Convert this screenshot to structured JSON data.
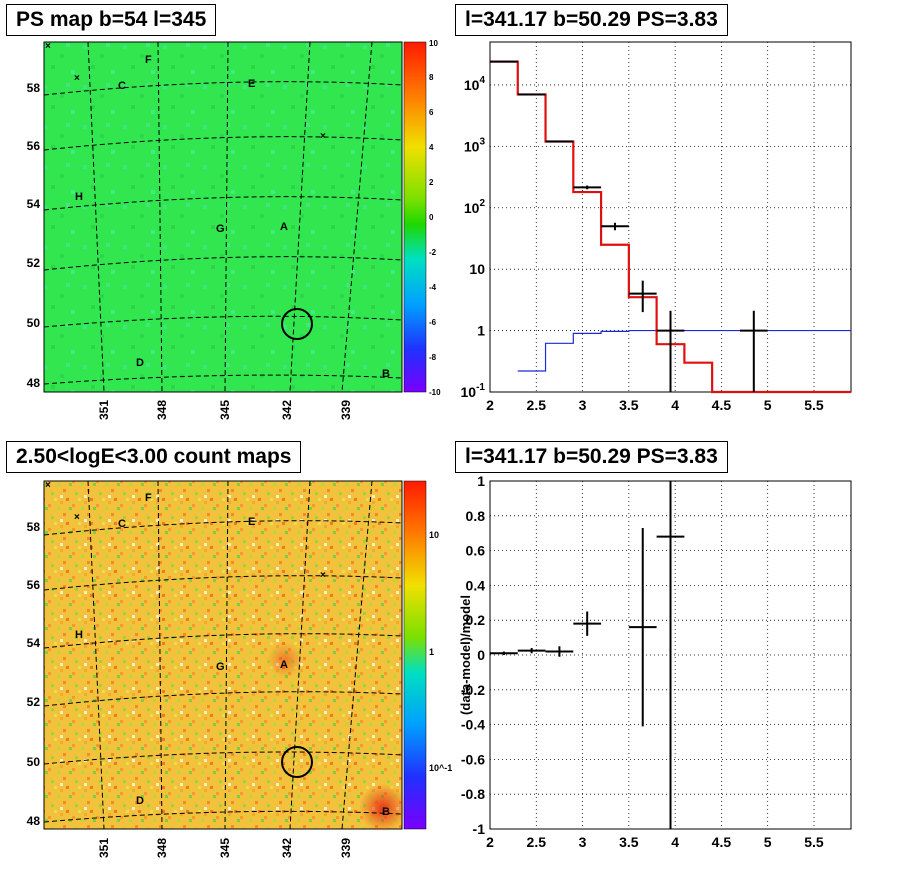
{
  "titles": {
    "ps_map": "PS map b=54 l=345",
    "spectrum": "l=341.17 b=50.29 PS=3.83",
    "count_map": "2.50<logE<3.00 count maps",
    "residual": "l=341.17 b=50.29 PS=3.83"
  },
  "chart_data": [
    {
      "type": "heatmap",
      "name": "PS map",
      "x_ticks": [
        "351",
        "348",
        "345",
        "342",
        "339"
      ],
      "y_ticks": [
        "58",
        "56",
        "54",
        "52",
        "50",
        "48"
      ],
      "colorbar_ticks": [
        "10",
        "8",
        "6",
        "4",
        "2",
        "0",
        "-2",
        "-4",
        "-6",
        "-8",
        "-10"
      ],
      "colorbar_range": [
        -10,
        10
      ],
      "source_labels": [
        "F",
        "C",
        "E",
        "H",
        "G",
        "A",
        "D",
        "B"
      ],
      "circle_center": {
        "l": 341.17,
        "b": 50.0
      },
      "colors": {
        "background": "#32e650",
        "bar_top": "#ff1a00",
        "bar_bottom": "#7a00ff"
      }
    },
    {
      "type": "line",
      "name": "spectrum",
      "scale": "log",
      "xlim": [
        2,
        5.9
      ],
      "ylim": [
        0.1,
        50000
      ],
      "x_ticks": [
        "2",
        "2.5",
        "3",
        "3.5",
        "4",
        "4.5",
        "5",
        "5.5"
      ],
      "y_ticks": [
        "10^-1",
        "1",
        "10",
        "10^2",
        "10^3",
        "10^4"
      ],
      "grid": true,
      "model_red": [
        {
          "x0": 2.0,
          "x1": 2.3,
          "y": 24000
        },
        {
          "x0": 2.3,
          "x1": 2.6,
          "y": 7000
        },
        {
          "x0": 2.6,
          "x1": 2.9,
          "y": 1200
        },
        {
          "x0": 2.9,
          "x1": 3.2,
          "y": 180
        },
        {
          "x0": 3.2,
          "x1": 3.5,
          "y": 25
        },
        {
          "x0": 3.5,
          "x1": 3.8,
          "y": 3.5
        },
        {
          "x0": 3.8,
          "x1": 4.1,
          "y": 0.6
        },
        {
          "x0": 4.1,
          "x1": 4.4,
          "y": 0.3
        },
        {
          "x0": 4.4,
          "x1": 5.9,
          "y": 0.1
        }
      ],
      "model_blue": [
        {
          "x0": 2.3,
          "x1": 2.6,
          "y": 0.22
        },
        {
          "x0": 2.6,
          "x1": 2.9,
          "y": 0.62
        },
        {
          "x0": 2.9,
          "x1": 3.2,
          "y": 0.9
        },
        {
          "x0": 3.2,
          "x1": 3.5,
          "y": 0.97
        },
        {
          "x0": 3.5,
          "x1": 5.9,
          "y": 1.0
        }
      ],
      "data_points": [
        {
          "x": 2.15,
          "xerr": 0.15,
          "y": 24000,
          "ylo": 23700,
          "yhi": 24300
        },
        {
          "x": 2.45,
          "xerr": 0.15,
          "y": 7000,
          "ylo": 6900,
          "yhi": 7100
        },
        {
          "x": 2.75,
          "xerr": 0.15,
          "y": 1200,
          "ylo": 1160,
          "yhi": 1240
        },
        {
          "x": 3.05,
          "xerr": 0.15,
          "y": 215,
          "ylo": 200,
          "yhi": 230
        },
        {
          "x": 3.35,
          "xerr": 0.15,
          "y": 50,
          "ylo": 43,
          "yhi": 57
        },
        {
          "x": 3.65,
          "xerr": 0.15,
          "y": 4,
          "ylo": 2,
          "yhi": 6.5
        },
        {
          "x": 3.95,
          "xerr": 0.15,
          "y": 1,
          "ylo": 0.1,
          "yhi": 2.1
        },
        {
          "x": 4.85,
          "xerr": 0.15,
          "y": 1,
          "ylo": 0.1,
          "yhi": 2.1
        }
      ]
    },
    {
      "type": "heatmap",
      "name": "count map",
      "x_ticks": [
        "351",
        "348",
        "345",
        "342",
        "339"
      ],
      "y_ticks": [
        "58",
        "56",
        "54",
        "52",
        "50",
        "48"
      ],
      "colorbar_ticks": [
        "10",
        "1",
        "10^-1"
      ],
      "colorbar_scale": "log",
      "source_labels": [
        "F",
        "C",
        "E",
        "H",
        "G",
        "A",
        "D",
        "B"
      ],
      "circle_center": {
        "l": 341.17,
        "b": 50.0
      },
      "colors": {
        "background": "#f3c23c"
      }
    },
    {
      "type": "scatter",
      "name": "residual",
      "xlim": [
        2,
        5.9
      ],
      "ylim": [
        -1,
        1
      ],
      "ylabel": "(data-model)/model",
      "x_ticks": [
        "2",
        "2.5",
        "3",
        "3.5",
        "4",
        "4.5",
        "5",
        "5.5"
      ],
      "y_ticks": [
        "1",
        "0.8",
        "0.6",
        "0.4",
        "0.2",
        "0",
        "-0.2",
        "-0.4",
        "-0.6",
        "-0.8",
        "-1"
      ],
      "grid": true,
      "data_points": [
        {
          "x": 2.15,
          "xerr": 0.15,
          "y": 0.01,
          "yerr": 0.01
        },
        {
          "x": 2.45,
          "xerr": 0.15,
          "y": 0.025,
          "yerr": 0.015
        },
        {
          "x": 2.75,
          "xerr": 0.15,
          "y": 0.02,
          "yerr": 0.03
        },
        {
          "x": 3.05,
          "xerr": 0.15,
          "y": 0.18,
          "yerr": 0.07
        },
        {
          "x": 3.65,
          "xerr": 0.15,
          "y": 0.16,
          "yerr": 0.57
        },
        {
          "x": 3.95,
          "xerr": 0.15,
          "y": 0.68,
          "yerr": 1.7
        }
      ]
    }
  ]
}
